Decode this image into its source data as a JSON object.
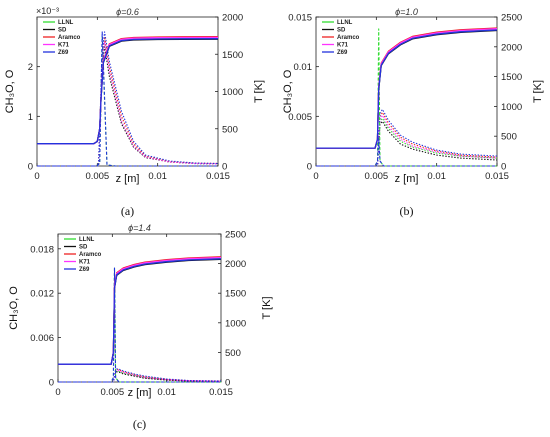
{
  "chart_data": [
    {
      "type": "line",
      "panel_label": "(a)",
      "title": "ϕ=0.6",
      "xlabel": "z [m]",
      "ylabel_left": "CH₃O, O",
      "ylabel_right": "T [K]",
      "xlim": [
        0,
        0.015
      ],
      "ylim_left": [
        0,
        0.003
      ],
      "ylim_right": [
        0,
        2000
      ],
      "left_axis_multiplier": "×10⁻³",
      "x_ticks": [
        "0",
        "0.005",
        "0.01",
        "0.015"
      ],
      "y_ticks_left": [
        "0",
        "1",
        "2"
      ],
      "y_ticks_right": [
        "0",
        "500",
        "1000",
        "1500",
        "2000"
      ],
      "grid": false,
      "legend_position": "top-left",
      "legend": [
        {
          "name": "LLNL",
          "color": "#33dd33"
        },
        {
          "name": "SD",
          "color": "#111111"
        },
        {
          "name": "Aramco",
          "color": "#ee2222"
        },
        {
          "name": "K71",
          "color": "#ff33ff"
        },
        {
          "name": "Z69",
          "color": "#2233dd"
        }
      ],
      "temperature": {
        "x": [
          0,
          0.0047,
          0.005,
          0.0052,
          0.0053,
          0.0055,
          0.006,
          0.007,
          0.008,
          0.01,
          0.012,
          0.015
        ],
        "values": [
          300,
          300,
          330,
          500,
          900,
          1400,
          1620,
          1690,
          1705,
          1712,
          1714,
          1715
        ]
      },
      "ch3o_dotted": [
        {
          "name": "LLNL",
          "x": [
            0,
            0.0051,
            0.0054,
            0.0056,
            0.006,
            0.007,
            0.008,
            0.009,
            0.011,
            0.013,
            0.015
          ],
          "values": [
            0,
            0,
            0.0021,
            0.0025,
            0.0019,
            0.0009,
            0.0004,
            0.00018,
            8e-05,
            5e-05,
            4e-05
          ]
        },
        {
          "name": "SD",
          "x": [
            0,
            0.0051,
            0.0054,
            0.0056,
            0.006,
            0.007,
            0.008,
            0.009,
            0.011,
            0.013,
            0.015
          ],
          "values": [
            0,
            0,
            0.002,
            0.0024,
            0.0018,
            0.00085,
            0.00038,
            0.00017,
            8e-05,
            5e-05,
            4e-05
          ]
        },
        {
          "name": "Aramco",
          "x": [
            0,
            0.0051,
            0.0054,
            0.0056,
            0.006,
            0.007,
            0.008,
            0.009,
            0.011,
            0.013,
            0.015
          ],
          "values": [
            0,
            0,
            0.0022,
            0.0026,
            0.002,
            0.001,
            0.00045,
            0.0002,
            9e-05,
            6e-05,
            5e-05
          ]
        },
        {
          "name": "K71",
          "x": [
            0,
            0.0051,
            0.0054,
            0.0056,
            0.006,
            0.007,
            0.008,
            0.009,
            0.011,
            0.013,
            0.015
          ],
          "values": [
            0,
            0,
            0.0021,
            0.0025,
            0.0019,
            0.0009,
            0.0004,
            0.00018,
            8e-05,
            5e-05,
            4e-05
          ]
        },
        {
          "name": "Z69",
          "x": [
            0,
            0.0051,
            0.0054,
            0.0056,
            0.006,
            0.007,
            0.008,
            0.009,
            0.011,
            0.013,
            0.015
          ],
          "values": [
            0,
            0,
            0.0023,
            0.0027,
            0.0021,
            0.0011,
            0.0005,
            0.00022,
            0.0001,
            6e-05,
            5e-05
          ]
        }
      ],
      "o_dashed": [
        {
          "name": "LLNL",
          "x": [
            0,
            0.0049,
            0.0052,
            0.0054,
            0.0058,
            0.0065,
            0.015
          ],
          "values": [
            0,
            0,
            5e-05,
            0.0026,
            2e-05,
            0,
            0
          ]
        },
        {
          "name": "Z69",
          "x": [
            0,
            0.0049,
            0.0052,
            0.0054,
            0.0058,
            0.0065,
            0.015
          ],
          "values": [
            0,
            0,
            5e-05,
            0.0027,
            2e-05,
            0,
            0
          ]
        }
      ]
    },
    {
      "type": "line",
      "panel_label": "(b)",
      "title": "ϕ=1.0",
      "xlabel": "z [m]",
      "ylabel_left": "CH₃O, O",
      "ylabel_right": "T [K]",
      "xlim": [
        0,
        0.015
      ],
      "ylim_left": [
        0,
        0.015
      ],
      "ylim_right": [
        0,
        2500
      ],
      "left_axis_multiplier": "",
      "x_ticks": [
        "0",
        "0.005",
        "0.01",
        "0.015"
      ],
      "y_ticks_left": [
        "0",
        "0.005",
        "0.01",
        "0.015"
      ],
      "y_ticks_right": [
        "0",
        "500",
        "1000",
        "1500",
        "2000",
        "2500"
      ],
      "grid": false,
      "legend_position": "top-left",
      "legend": [
        {
          "name": "LLNL",
          "color": "#33dd33"
        },
        {
          "name": "SD",
          "color": "#111111"
        },
        {
          "name": "Aramco",
          "color": "#ee2222"
        },
        {
          "name": "K71",
          "color": "#ff33ff"
        },
        {
          "name": "Z69",
          "color": "#2233dd"
        }
      ],
      "temperature": {
        "x": [
          0,
          0.0049,
          0.0051,
          0.0052,
          0.0054,
          0.006,
          0.007,
          0.008,
          0.01,
          0.012,
          0.015
        ],
        "values": [
          300,
          300,
          450,
          1300,
          1700,
          1900,
          2050,
          2150,
          2220,
          2260,
          2290
        ]
      },
      "ch3o_dotted": [
        {
          "name": "LLNL",
          "x": [
            0,
            0.0051,
            0.0053,
            0.0055,
            0.006,
            0.007,
            0.008,
            0.01,
            0.012,
            0.015
          ],
          "values": [
            0,
            0,
            0.0045,
            0.0048,
            0.0038,
            0.0025,
            0.0019,
            0.0013,
            0.001,
            0.0008
          ]
        },
        {
          "name": "SD",
          "x": [
            0,
            0.0051,
            0.0053,
            0.0055,
            0.006,
            0.007,
            0.008,
            0.01,
            0.012,
            0.015
          ],
          "values": [
            0,
            0,
            0.0042,
            0.0045,
            0.0035,
            0.0022,
            0.0017,
            0.0011,
            0.0008,
            0.0006
          ]
        },
        {
          "name": "Aramco",
          "x": [
            0,
            0.0051,
            0.0053,
            0.0055,
            0.006,
            0.007,
            0.008,
            0.01,
            0.012,
            0.015
          ],
          "values": [
            0,
            0,
            0.005,
            0.0054,
            0.0043,
            0.0029,
            0.0022,
            0.0015,
            0.0011,
            0.0009
          ]
        },
        {
          "name": "K71",
          "x": [
            0,
            0.0051,
            0.0053,
            0.0055,
            0.006,
            0.007,
            0.008,
            0.01,
            0.012,
            0.015
          ],
          "values": [
            0,
            0,
            0.0047,
            0.0051,
            0.004,
            0.0027,
            0.002,
            0.0014,
            0.001,
            0.0008
          ]
        },
        {
          "name": "Z69",
          "x": [
            0,
            0.0051,
            0.0053,
            0.0055,
            0.006,
            0.007,
            0.008,
            0.01,
            0.012,
            0.015
          ],
          "values": [
            0,
            0,
            0.0053,
            0.0057,
            0.0046,
            0.0031,
            0.0024,
            0.0016,
            0.0012,
            0.001
          ]
        }
      ],
      "o_dashed": [
        {
          "name": "LLNL",
          "x": [
            0,
            0.0049,
            0.0051,
            0.0052,
            0.0053,
            0.0056,
            0.015
          ],
          "values": [
            0,
            0,
            0.0005,
            0.0138,
            0.0005,
            0,
            0
          ]
        },
        {
          "name": "Z69",
          "x": [
            0,
            0.0049,
            0.0051,
            0.0052,
            0.0053,
            0.0056,
            0.015
          ],
          "values": [
            0,
            0,
            0.0005,
            0.0028,
            0.0005,
            0,
            0
          ]
        }
      ]
    },
    {
      "type": "line",
      "panel_label": "(c)",
      "title": "ϕ=1.4",
      "xlabel": "z [m]",
      "ylabel_left": "CH₃O, O",
      "ylabel_right": "T [K]",
      "xlim": [
        0,
        0.015
      ],
      "ylim_left": [
        0,
        0.02
      ],
      "ylim_right": [
        0,
        2500
      ],
      "left_axis_multiplier": "",
      "x_ticks": [
        "0",
        "0.005",
        "0.01",
        "0.015"
      ],
      "y_ticks_left": [
        "0",
        "0.006",
        "0.012",
        "0.018"
      ],
      "y_ticks_right": [
        "0",
        "500",
        "1000",
        "1500",
        "2000",
        "2500"
      ],
      "grid": false,
      "legend_position": "top-left",
      "legend": [
        {
          "name": "LLNL",
          "color": "#33dd33"
        },
        {
          "name": "SD",
          "color": "#111111"
        },
        {
          "name": "Aramco",
          "color": "#ee2222"
        },
        {
          "name": "K71",
          "color": "#ff33ff"
        },
        {
          "name": "Z69",
          "color": "#2233dd"
        }
      ],
      "temperature": {
        "x": [
          0,
          0.0049,
          0.0051,
          0.0052,
          0.0054,
          0.006,
          0.007,
          0.008,
          0.01,
          0.012,
          0.015
        ],
        "values": [
          300,
          300,
          500,
          1600,
          1820,
          1900,
          1960,
          2000,
          2040,
          2070,
          2090
        ]
      },
      "ch3o_dotted": [
        {
          "name": "LLNL",
          "x": [
            0,
            0.0051,
            0.0053,
            0.0055,
            0.006,
            0.007,
            0.008,
            0.01,
            0.012,
            0.015
          ],
          "values": [
            0,
            0,
            0.0014,
            0.0015,
            0.0012,
            0.0009,
            0.0006,
            0.0003,
            0.00015,
            0.0001
          ]
        },
        {
          "name": "SD",
          "x": [
            0,
            0.0051,
            0.0053,
            0.0055,
            0.006,
            0.007,
            0.008,
            0.01,
            0.012,
            0.015
          ],
          "values": [
            0,
            0,
            0.0013,
            0.0014,
            0.0011,
            0.0008,
            0.0005,
            0.00025,
            0.00012,
            8e-05
          ]
        },
        {
          "name": "Aramco",
          "x": [
            0,
            0.0051,
            0.0053,
            0.0055,
            0.006,
            0.007,
            0.008,
            0.01,
            0.012,
            0.015
          ],
          "values": [
            0,
            0,
            0.0016,
            0.0017,
            0.0014,
            0.001,
            0.0007,
            0.00035,
            0.00018,
            0.00012
          ]
        },
        {
          "name": "K71",
          "x": [
            0,
            0.0051,
            0.0053,
            0.0055,
            0.006,
            0.007,
            0.008,
            0.01,
            0.012,
            0.015
          ],
          "values": [
            0,
            0,
            0.0015,
            0.0016,
            0.0013,
            0.0009,
            0.0006,
            0.0003,
            0.00016,
            0.0001
          ]
        },
        {
          "name": "Z69",
          "x": [
            0,
            0.0051,
            0.0053,
            0.0055,
            0.006,
            0.007,
            0.008,
            0.01,
            0.012,
            0.015
          ],
          "values": [
            0,
            0,
            0.0017,
            0.0018,
            0.0015,
            0.0011,
            0.0008,
            0.0004,
            0.0002,
            0.00013
          ]
        }
      ],
      "o_dashed": [
        {
          "name": "LLNL",
          "x": [
            0,
            0.0049,
            0.0051,
            0.0052,
            0.0053,
            0.0056,
            0.015
          ],
          "values": [
            0,
            0,
            0.0006,
            0.0155,
            0.0006,
            0,
            0
          ]
        },
        {
          "name": "Z69",
          "x": [
            0,
            0.0049,
            0.0051,
            0.0052,
            0.0053,
            0.0056,
            0.015
          ],
          "values": [
            0,
            0,
            0.0006,
            0.0154,
            0.0006,
            0,
            0
          ]
        }
      ]
    }
  ]
}
